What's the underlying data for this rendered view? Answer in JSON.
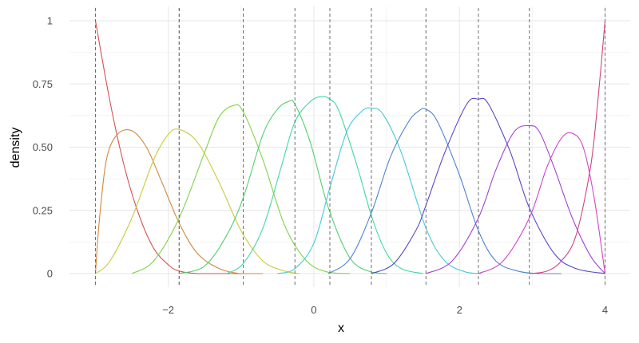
{
  "chart_data": {
    "type": "line",
    "title": "",
    "xlabel": "x",
    "ylabel": "density",
    "xlim": [
      -3.0,
      4.0
    ],
    "ylim": [
      0,
      1
    ],
    "x_ticks": [
      -2,
      0,
      2,
      4
    ],
    "x_tick_labels": [
      "−2",
      "0",
      "2",
      "4"
    ],
    "y_ticks": [
      0,
      0.25,
      0.5,
      0.75,
      1
    ],
    "y_tick_labels": [
      "0",
      "0.25",
      "0.50",
      "0.75",
      "1"
    ],
    "grid": true,
    "legend": "none",
    "knots": [
      -3.0,
      -1.85,
      -1.85,
      -0.97,
      -0.26,
      0.22,
      0.79,
      1.54,
      2.26,
      2.96,
      4.0
    ],
    "series": [
      {
        "color": "#d4524f",
        "x": [
          -3.0,
          -2.8,
          -2.6,
          -2.4,
          -2.2,
          -2.0,
          -1.85,
          -1.6,
          -1.3,
          -1.0
        ],
        "values": [
          1.0,
          0.68,
          0.42,
          0.23,
          0.1,
          0.035,
          0.01,
          0.0,
          0.0,
          0.0
        ]
      },
      {
        "color": "#d0883a",
        "x": [
          -3.0,
          -2.95,
          -2.85,
          -2.7,
          -2.5,
          -2.3,
          -2.1,
          -1.85,
          -1.6,
          -1.3,
          -1.0,
          -0.7
        ],
        "values": [
          0.0,
          0.2,
          0.45,
          0.55,
          0.565,
          0.5,
          0.37,
          0.2,
          0.08,
          0.02,
          0.0,
          0.0
        ]
      },
      {
        "color": "#c8cb3d",
        "x": [
          -3.0,
          -2.8,
          -2.5,
          -2.2,
          -2.0,
          -1.85,
          -1.6,
          -1.3,
          -1.0,
          -0.7,
          -0.4,
          -0.2
        ],
        "values": [
          0.0,
          0.05,
          0.22,
          0.45,
          0.55,
          0.57,
          0.52,
          0.36,
          0.17,
          0.05,
          0.01,
          0.0
        ]
      },
      {
        "color": "#83d24a",
        "x": [
          -2.5,
          -2.2,
          -1.85,
          -1.5,
          -1.3,
          -1.1,
          -0.97,
          -0.7,
          -0.4,
          -0.1,
          0.2,
          0.5
        ],
        "values": [
          0.0,
          0.05,
          0.22,
          0.48,
          0.62,
          0.665,
          0.64,
          0.45,
          0.19,
          0.05,
          0.005,
          0.0
        ]
      },
      {
        "color": "#50d16a",
        "x": [
          -1.85,
          -1.5,
          -1.2,
          -0.97,
          -0.7,
          -0.5,
          -0.35,
          -0.26,
          -0.05,
          0.2,
          0.5,
          0.8,
          1.0
        ],
        "values": [
          0.0,
          0.03,
          0.15,
          0.3,
          0.55,
          0.65,
          0.68,
          0.67,
          0.52,
          0.26,
          0.06,
          0.005,
          0.0
        ]
      },
      {
        "color": "#42d6a3",
        "x": [
          -1.2,
          -0.97,
          -0.7,
          -0.45,
          -0.26,
          -0.05,
          0.1,
          0.22,
          0.35,
          0.6,
          0.8,
          1.0,
          1.2,
          1.5
        ],
        "values": [
          0.0,
          0.04,
          0.18,
          0.42,
          0.6,
          0.68,
          0.7,
          0.69,
          0.64,
          0.42,
          0.22,
          0.08,
          0.02,
          0.0
        ]
      },
      {
        "color": "#45c9d4",
        "x": [
          -0.5,
          -0.26,
          0.0,
          0.22,
          0.45,
          0.65,
          0.79,
          0.95,
          1.2,
          1.54,
          1.8,
          2.1,
          2.3
        ],
        "values": [
          0.0,
          0.02,
          0.12,
          0.34,
          0.56,
          0.64,
          0.655,
          0.63,
          0.48,
          0.18,
          0.05,
          0.005,
          0.0
        ]
      },
      {
        "color": "#4f83d4",
        "x": [
          0.2,
          0.5,
          0.79,
          1.05,
          1.3,
          1.45,
          1.54,
          1.7,
          2.0,
          2.26,
          2.5,
          2.8,
          3.1,
          3.4
        ],
        "values": [
          0.0,
          0.06,
          0.24,
          0.46,
          0.6,
          0.645,
          0.65,
          0.6,
          0.39,
          0.17,
          0.05,
          0.01,
          0.0,
          0.0
        ]
      },
      {
        "color": "#5548cd",
        "x": [
          0.79,
          1.1,
          1.4,
          1.54,
          1.8,
          2.1,
          2.26,
          2.4,
          2.7,
          2.96,
          3.3,
          3.6,
          4.0
        ],
        "values": [
          0.0,
          0.04,
          0.17,
          0.27,
          0.48,
          0.67,
          0.69,
          0.67,
          0.48,
          0.26,
          0.08,
          0.02,
          0.0
        ]
      },
      {
        "color": "#a044d2",
        "x": [
          1.54,
          1.9,
          2.26,
          2.5,
          2.75,
          2.96,
          3.1,
          3.3,
          3.55,
          3.8,
          4.0
        ],
        "values": [
          0.0,
          0.05,
          0.22,
          0.41,
          0.56,
          0.585,
          0.56,
          0.42,
          0.22,
          0.07,
          0.0
        ]
      },
      {
        "color": "#d246c7",
        "x": [
          2.26,
          2.6,
          2.96,
          3.2,
          3.4,
          3.55,
          3.7,
          3.85,
          4.0
        ],
        "values": [
          0.0,
          0.05,
          0.22,
          0.42,
          0.535,
          0.555,
          0.5,
          0.3,
          0.0
        ]
      },
      {
        "color": "#d2447a",
        "x": [
          2.96,
          3.2,
          3.4,
          3.6,
          3.8,
          3.9,
          4.0
        ],
        "values": [
          0.0,
          0.01,
          0.05,
          0.15,
          0.42,
          0.68,
          1.0
        ]
      }
    ]
  }
}
